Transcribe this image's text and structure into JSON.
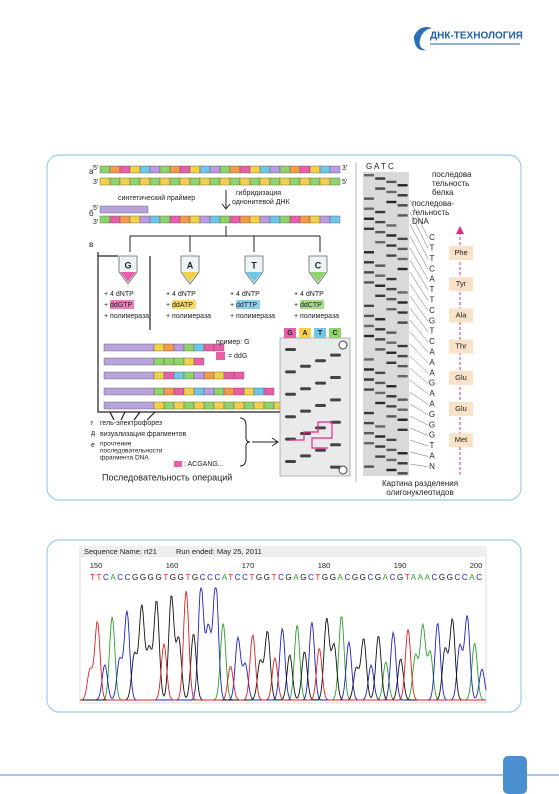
{
  "header": {
    "logo": "ДНК-ТЕХНОЛОГИЯ"
  },
  "figure1": {
    "panel_labels": [
      "а",
      "б",
      "в",
      "г",
      "д",
      "е"
    ],
    "ends": [
      "5'",
      "3'"
    ],
    "primer": "синтетический праймер",
    "hybridization": [
      "гибридизация",
      "однонитевой ДНК"
    ],
    "tubes": [
      {
        "base": "G",
        "dntp": "+ 4 dNTP",
        "dd": "+ ddGTP",
        "pol": "+ полимераза"
      },
      {
        "base": "A",
        "dntp": "+ 4 dNTP",
        "dd": "+ ddATP",
        "pol": "+ полимераза"
      },
      {
        "base": "T",
        "dntp": "+ 4 dNTP",
        "dd": "+ ddTTP",
        "pol": "+ полимераза"
      },
      {
        "base": "C",
        "dntp": "+ 4 dNTP",
        "dd": "+ ddCTP",
        "pol": "+ полимераза"
      }
    ],
    "example": "пример: G",
    "ddg": "= ddG",
    "steps": [
      "гель-электрофорез",
      "визуализация фрагментов"
    ],
    "reading": [
      "прочтение",
      "последовательности",
      "фрагмента DNA"
    ],
    "read_result": ": ACGANG...",
    "operations": "Последовательность операций",
    "gel_lanes": [
      "G",
      "A",
      "T",
      "C"
    ],
    "image_lanes": "G A T C",
    "protein_label": [
      "последова",
      "тельность",
      "белка"
    ],
    "dna_label": [
      "последова-",
      "тельность",
      "DNA"
    ],
    "dna_sequence": [
      "C",
      "T",
      "T",
      "C",
      "A",
      "T",
      "T",
      "C",
      "G",
      "T",
      "C",
      "A",
      "A",
      "A",
      "G",
      "A",
      "A",
      "G",
      "G",
      "G",
      "T",
      "A",
      "N"
    ],
    "amino_acids": [
      "Phe",
      "Tyr",
      "Ala",
      "Thr",
      "Glu",
      "Glu",
      "Met"
    ],
    "caption": [
      "Картина разделения",
      "олигонуклеотидов"
    ]
  },
  "figure2": {
    "sequence_name": "Sequence Name: rt21",
    "run": "Run ended: May 25, 2011",
    "ticks": [
      150,
      160,
      170,
      180,
      190,
      200
    ],
    "sequence": "TTCACCGGGGTGGTGCCCATCCTGGTCGAGCTGGACGGCGACGTAAACGGCCAC"
  }
}
